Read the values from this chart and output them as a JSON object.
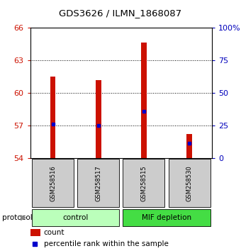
{
  "title": "GDS3626 / ILMN_1868087",
  "samples": [
    "GSM258516",
    "GSM258517",
    "GSM258515",
    "GSM258530"
  ],
  "bar_tops": [
    61.5,
    61.2,
    64.6,
    56.2
  ],
  "bar_base": 54.0,
  "percentile_values": [
    57.1,
    57.0,
    58.3,
    55.4
  ],
  "ylim_left": [
    54,
    66
  ],
  "yticks_left": [
    54,
    57,
    60,
    63,
    66
  ],
  "ylim_right": [
    0,
    100
  ],
  "yticks_right": [
    0,
    25,
    50,
    75,
    100
  ],
  "bar_color": "#cc1100",
  "percentile_color": "#0000cc",
  "bar_width": 0.12,
  "groups": [
    {
      "label": "control",
      "indices": [
        0,
        1
      ],
      "color": "#bbffbb"
    },
    {
      "label": "MIF depletion",
      "indices": [
        2,
        3
      ],
      "color": "#44dd44"
    }
  ],
  "legend_count_color": "#cc1100",
  "legend_percentile_color": "#0000cc",
  "background_color": "#ffffff",
  "plot_bg": "#ffffff",
  "tick_color_left": "#cc1100",
  "tick_color_right": "#0000bb",
  "title_fontsize": 9.5
}
